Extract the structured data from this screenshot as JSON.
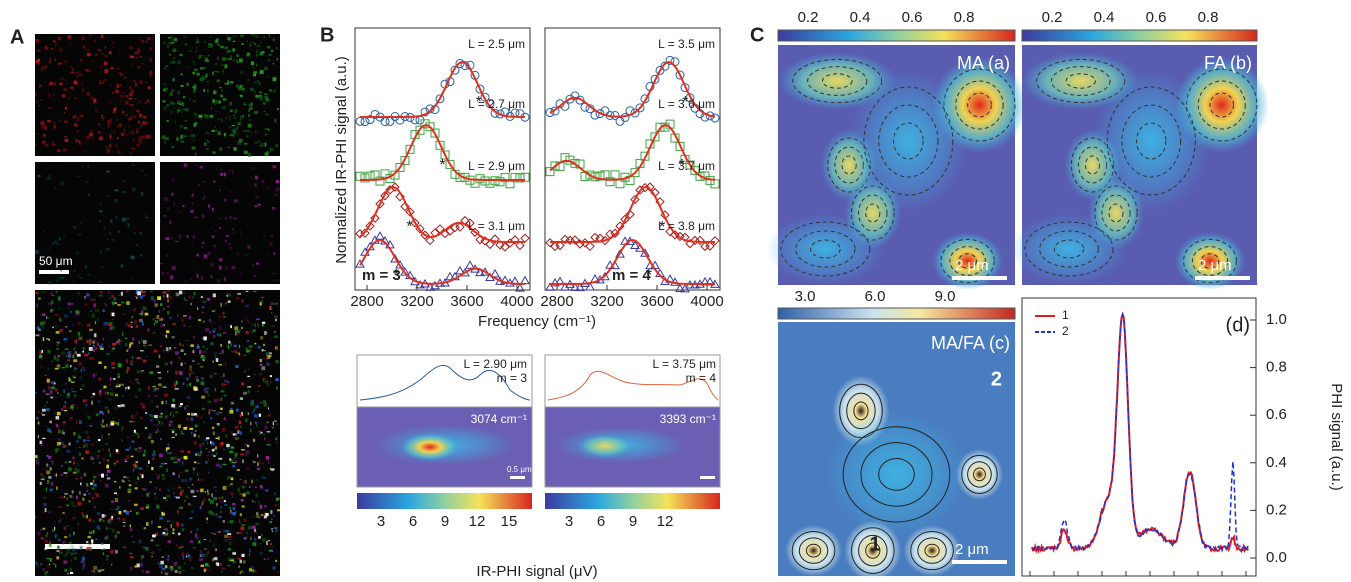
{
  "panel_a": {
    "label": "A",
    "scale_bar": "50 μm"
  },
  "panel_b": {
    "label": "B",
    "y_axis_label": "Normalized IR-PHI signal (a.u.)",
    "x_axis_label": "Frequency (cm⁻¹)",
    "x_ticks": [
      "2800",
      "3200",
      "3600",
      "4000"
    ],
    "asterisk": "*",
    "left": {
      "mode": "m = 3",
      "curves": [
        "L = 2.5 μm",
        "L = 2.7 μm",
        "L = 2.9 μm",
        "L = 3.1 μm"
      ]
    },
    "right": {
      "mode": "m = 4",
      "curves": [
        "L = 3.5 μm",
        "L = 3.6 μm",
        "L = 3.7 μm",
        "L = 3.8 μm"
      ]
    },
    "insets": [
      {
        "length": "L = 2.90 μm",
        "mode": "m = 3",
        "frequency": "3074 cm⁻¹",
        "scale_bar": "0.5 μm",
        "colorbar_ticks": [
          "3",
          "6",
          "9",
          "12",
          "15"
        ]
      },
      {
        "length": "L = 3.75 μm",
        "mode": "m = 4",
        "frequency": "3393 cm⁻¹",
        "colorbar_ticks": [
          "3",
          "6",
          "9",
          "12"
        ]
      }
    ],
    "colorbar_label": "IR-PHI signal (μV)"
  },
  "panel_c": {
    "label": "C",
    "colorbar_ticks_ab": [
      "0.2",
      "0.4",
      "0.6",
      "0.8"
    ],
    "map_a": {
      "title": "MA (a)",
      "scale_bar": "2 μm"
    },
    "map_b": {
      "title": "FA (b)",
      "scale_bar": "2 μm"
    },
    "map_c": {
      "title": "MA/FA (c)",
      "point_1": "1",
      "point_2": "2",
      "scale_bar": "2 μm",
      "colorbar_ticks": [
        "3.0",
        "6.0",
        "9.0"
      ]
    },
    "plot_d": {
      "title": "(d)",
      "legend": [
        "1",
        "2"
      ],
      "y_ticks": [
        "0.0",
        "0.2",
        "0.4",
        "0.6",
        "0.8",
        "1.0"
      ],
      "y_axis_label": "PHI signal (a.u.)"
    }
  }
}
